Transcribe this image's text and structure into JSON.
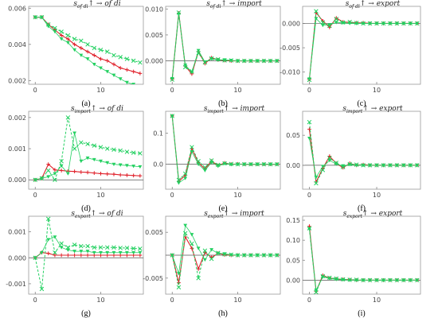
{
  "series_colors": {
    "line1": "#e0202a",
    "line2": "#22d060"
  },
  "chart_data": [
    {
      "type": "line",
      "label": "(a)",
      "title_main": "s",
      "title_sub": "of di",
      "title_tail": "↑ → of di",
      "xlim": [
        -1,
        16.5
      ],
      "ylim": [
        0.0018,
        0.0061
      ],
      "xticks": [
        "0",
        "10"
      ],
      "xtick_values": [
        0,
        10
      ],
      "yticks": [
        "0.002",
        "0.004",
        "0.006"
      ],
      "ytick_values": [
        0.002,
        0.004,
        0.006
      ],
      "x": [
        0,
        1,
        2,
        3,
        4,
        5,
        6,
        7,
        8,
        9,
        10,
        11,
        12,
        13,
        14,
        15,
        16
      ],
      "series": [
        {
          "values": [
            0.0055,
            0.0055,
            0.0051,
            0.0048,
            0.0045,
            0.0043,
            0.004,
            0.0038,
            0.0036,
            0.0034,
            0.0032,
            0.0031,
            0.0029,
            0.0027,
            0.0026,
            0.0025,
            0.0024
          ]
        },
        {
          "values": [
            0.0055,
            0.0055,
            0.0051,
            0.0049,
            0.0047,
            0.0045,
            0.0043,
            0.0042,
            0.004,
            0.0038,
            0.0037,
            0.0036,
            0.0034,
            0.0033,
            0.0032,
            0.0031,
            0.003
          ]
        },
        {
          "values": [
            0.0055,
            0.0055,
            0.005,
            0.0047,
            0.0043,
            0.0041,
            0.0037,
            0.0034,
            0.0032,
            0.0029,
            0.0027,
            0.0025,
            0.0023,
            0.0021,
            0.0019,
            0.0018,
            0.0016
          ]
        }
      ]
    },
    {
      "type": "line",
      "label": "(b)",
      "title_main": "s",
      "title_sub": "of di",
      "title_tail": "↑ → import",
      "xlim": [
        -1,
        16.5
      ],
      "ylim": [
        -0.0045,
        0.0105
      ],
      "xticks": [
        "0",
        "10"
      ],
      "xtick_values": [
        0,
        10
      ],
      "yticks": [
        "0.000",
        "0.005",
        "0.010"
      ],
      "ytick_values": [
        0,
        0.005,
        0.01
      ],
      "x": [
        0,
        1,
        2,
        3,
        4,
        5,
        6,
        7,
        8,
        9,
        10,
        11,
        12,
        13,
        14,
        15,
        16
      ],
      "series": [
        {
          "values": [
            -0.0035,
            0.0092,
            -0.001,
            -0.0025,
            0.0018,
            -0.0005,
            0.0006,
            0.0002,
            0.0001,
            0.0,
            0.0,
            0.0,
            0.0,
            0.0,
            0.0,
            0.0,
            0.0
          ]
        },
        {
          "values": [
            -0.0036,
            0.0093,
            -0.0012,
            -0.002,
            0.0015,
            -0.0003,
            0.0005,
            0.0003,
            0.0001,
            0.0001,
            0.0,
            0.0,
            0.0,
            0.0,
            0.0,
            0.0,
            0.0
          ]
        },
        {
          "values": [
            -0.0034,
            0.009,
            -0.0008,
            -0.0022,
            0.002,
            -0.0002,
            0.0004,
            0.0002,
            0.0002,
            0.0001,
            0.0,
            0.0,
            0.0,
            0.0,
            0.0,
            0.0,
            0.0
          ]
        }
      ]
    },
    {
      "type": "line",
      "label": "(c)",
      "title_main": "s",
      "title_sub": "of di",
      "title_tail": "↑ → export",
      "xlim": [
        -1,
        16.5
      ],
      "ylim": [
        -0.0125,
        0.0035
      ],
      "xticks": [
        "0",
        "10"
      ],
      "xtick_values": [
        0,
        10
      ],
      "yticks": [
        "0.000",
        "-0.005",
        "-0.010"
      ],
      "ytick_values": [
        0,
        -0.005,
        -0.01
      ],
      "x": [
        0,
        1,
        2,
        3,
        4,
        5,
        6,
        7,
        8,
        9,
        10,
        11,
        12,
        13,
        14,
        15,
        16
      ],
      "series": [
        {
          "values": [
            -0.0115,
            0.0022,
            0.0005,
            -0.0008,
            0.0011,
            0.0003,
            0.0002,
            0.0001,
            0.0001,
            0.0,
            0.0,
            0.0,
            0.0,
            0.0,
            0.0,
            0.0,
            0.0
          ]
        },
        {
          "values": [
            -0.0116,
            0.0025,
            0.0002,
            -0.0005,
            0.0009,
            0.0002,
            0.0003,
            0.0001,
            0.0,
            0.0,
            0.0,
            0.0,
            0.0,
            0.0,
            0.0,
            0.0,
            0.0
          ]
        },
        {
          "values": [
            -0.0114,
            0.001,
            -0.0004,
            -0.0003,
            0.0002,
            0.0001,
            0.0,
            0.0,
            0.0,
            0.0,
            0.0,
            0.0,
            0.0,
            0.0,
            0.0,
            0.0,
            0.0
          ]
        }
      ]
    },
    {
      "type": "line",
      "label": "(d)",
      "title_main": "s",
      "title_sub": "import",
      "title_tail": "↑ → of di",
      "xlim": [
        -1,
        16.5
      ],
      "ylim": [
        -0.0003,
        0.0022
      ],
      "xticks": [
        "0",
        "10"
      ],
      "xtick_values": [
        0,
        10
      ],
      "yticks": [
        "0.000",
        "0.001",
        "0.002"
      ],
      "ytick_values": [
        0,
        0.001,
        0.002
      ],
      "x": [
        0,
        1,
        2,
        3,
        4,
        5,
        6,
        7,
        8,
        9,
        10,
        11,
        12,
        13,
        14,
        15,
        16
      ],
      "series": [
        {
          "values": [
            0.0,
            5e-05,
            0.0005,
            0.00032,
            0.0003,
            0.00028,
            0.00027,
            0.00025,
            0.00024,
            0.00022,
            0.0002,
            0.00019,
            0.00018,
            0.00016,
            0.00015,
            0.00014,
            0.00013
          ]
        },
        {
          "values": [
            0.0,
            5e-05,
            0.0003,
            0.0,
            0.0006,
            0.002,
            0.001,
            0.0012,
            0.00115,
            0.0011,
            0.00105,
            0.001,
            0.00097,
            0.00094,
            0.0009,
            0.00087,
            0.00085
          ]
        },
        {
          "values": [
            0.0,
            5e-05,
            0.0001,
            0.0002,
            0.00045,
            0.0002,
            0.0015,
            0.0006,
            0.0007,
            0.00065,
            0.0006,
            0.00055,
            0.0005,
            0.00048,
            0.00046,
            0.00044,
            0.00042
          ]
        }
      ]
    },
    {
      "type": "line",
      "label": "(e)",
      "title_main": "s",
      "title_sub": "import",
      "title_tail": "↑ → import",
      "xlim": [
        -1,
        16.5
      ],
      "ylim": [
        -0.08,
        0.17
      ],
      "xticks": [
        "0",
        "10"
      ],
      "xtick_values": [
        0,
        10
      ],
      "yticks": [
        "0.1",
        "0.0"
      ],
      "ytick_values": [
        0.1,
        0.0
      ],
      "x": [
        0,
        1,
        2,
        3,
        4,
        5,
        6,
        7,
        8,
        9,
        10,
        11,
        12,
        13,
        14,
        15,
        16
      ],
      "series": [
        {
          "values": [
            0.155,
            -0.055,
            -0.035,
            0.05,
            0.005,
            -0.015,
            0.01,
            -0.004,
            0.004,
            0.0,
            0.001,
            0.0,
            0.0,
            0.0,
            0.0,
            0.0,
            0.0
          ]
        },
        {
          "values": [
            0.155,
            -0.05,
            -0.03,
            0.055,
            0.01,
            -0.01,
            0.012,
            -0.002,
            0.003,
            0.001,
            0.0,
            0.0,
            0.0,
            0.0,
            0.0,
            0.0,
            0.0
          ]
        },
        {
          "values": [
            0.155,
            -0.06,
            -0.045,
            0.04,
            0.0,
            -0.02,
            0.006,
            -0.006,
            0.002,
            -0.001,
            0.0,
            0.0,
            0.0,
            0.0,
            0.0,
            0.0,
            0.0
          ]
        }
      ]
    },
    {
      "type": "line",
      "label": "(f)",
      "title_main": "s",
      "title_sub": "import",
      "title_tail": "↑ → export",
      "xlim": [
        -1,
        16.5
      ],
      "ylim": [
        -0.04,
        0.09
      ],
      "xticks": [
        "0",
        "10"
      ],
      "xtick_values": [
        0,
        10
      ],
      "yticks": [
        "0.05",
        "0.00"
      ],
      "ytick_values": [
        0.05,
        0.0
      ],
      "x": [
        0,
        1,
        2,
        3,
        4,
        5,
        6,
        7,
        8,
        9,
        10,
        11,
        12,
        13,
        14,
        15,
        16
      ],
      "series": [
        {
          "values": [
            0.06,
            -0.028,
            -0.005,
            0.015,
            0.003,
            -0.004,
            0.003,
            0.0,
            0.001,
            0.0,
            0.0,
            0.0,
            0.0,
            0.0,
            0.0,
            0.0,
            0.0
          ]
        },
        {
          "values": [
            0.072,
            -0.03,
            -0.008,
            0.012,
            0.004,
            -0.003,
            0.002,
            0.001,
            0.0,
            0.0,
            0.0,
            0.0,
            0.0,
            0.0,
            0.0,
            0.0,
            0.0
          ]
        },
        {
          "values": [
            0.045,
            -0.02,
            -0.002,
            0.008,
            0.002,
            -0.001,
            0.001,
            0.0,
            0.0,
            0.0,
            0.0,
            0.0,
            0.0,
            0.0,
            0.0,
            0.0,
            0.0
          ]
        }
      ]
    },
    {
      "type": "line",
      "label": "(g)",
      "title_main": "s",
      "title_sub": "export",
      "title_tail": "↑ → of di",
      "xlim": [
        -1,
        16.5
      ],
      "ylim": [
        -0.0014,
        0.0016
      ],
      "xticks": [
        "0",
        "10"
      ],
      "xtick_values": [
        0,
        10
      ],
      "yticks": [
        "0.001",
        "0.000",
        "-0.001"
      ],
      "ytick_values": [
        0.001,
        0.0,
        -0.001
      ],
      "x": [
        0,
        1,
        2,
        3,
        4,
        5,
        6,
        7,
        8,
        9,
        10,
        11,
        12,
        13,
        14,
        15,
        16
      ],
      "series": [
        {
          "values": [
            0.0,
            0.0002,
            0.00017,
            0.0001,
            0.0001,
            0.0001,
            0.0001,
            0.0001,
            0.0001,
            0.0001,
            0.0001,
            0.0001,
            0.0001,
            0.0001,
            0.0001,
            0.0001,
            0.0001
          ]
        },
        {
          "values": [
            0.0,
            -0.0012,
            0.0015,
            0.0002,
            0.00055,
            0.0004,
            0.0005,
            0.00045,
            0.00045,
            0.0004,
            0.0004,
            0.0004,
            0.0004,
            0.00038,
            0.00038,
            0.00036,
            0.00035
          ]
        },
        {
          "values": [
            0.0,
            0.0002,
            0.0007,
            0.0008,
            0.0004,
            0.0003,
            0.00025,
            0.00025,
            0.00025,
            0.0002,
            0.0002,
            0.0002,
            0.0002,
            0.0002,
            0.0002,
            0.0002,
            0.0002
          ]
        }
      ]
    },
    {
      "type": "line",
      "label": "(h)",
      "title_main": "s",
      "title_sub": "export",
      "title_tail": "↑ → import",
      "xlim": [
        -1,
        16.5
      ],
      "ylim": [
        -0.0085,
        0.0085
      ],
      "xticks": [
        "0",
        "10"
      ],
      "xtick_values": [
        0,
        10
      ],
      "yticks": [
        "0.005",
        "-0.005"
      ],
      "ytick_values": [
        0.005,
        -0.005
      ],
      "x": [
        0,
        1,
        2,
        3,
        4,
        5,
        6,
        7,
        8,
        9,
        10,
        11,
        12,
        13,
        14,
        15,
        16
      ],
      "series": [
        {
          "values": [
            0.0,
            -0.006,
            0.004,
            0.0015,
            -0.003,
            0.0006,
            -0.0005,
            0.0004,
            0.0001,
            0.0,
            0.0,
            0.0,
            0.0,
            0.0,
            0.0,
            0.0,
            0.0
          ]
        },
        {
          "values": [
            0.0,
            -0.007,
            0.0048,
            0.0025,
            -0.005,
            0.001,
            -0.0008,
            0.0005,
            0.0002,
            0.0001,
            0.0,
            0.0,
            0.0,
            0.0,
            0.0,
            0.0,
            0.0
          ]
        },
        {
          "values": [
            0.0,
            -0.004,
            0.0065,
            0.0045,
            0.0015,
            -0.001,
            0.0012,
            0.0004,
            0.0003,
            0.0001,
            0.0,
            0.0,
            0.0,
            0.0,
            0.0,
            0.0,
            0.0
          ]
        }
      ]
    },
    {
      "type": "line",
      "label": "(i)",
      "title_main": "s",
      "title_sub": "export",
      "title_tail": "↑ → export",
      "xlim": [
        -1,
        16.5
      ],
      "ylim": [
        -0.035,
        0.16
      ],
      "xticks": [
        "0",
        "10"
      ],
      "xtick_values": [
        0,
        10
      ],
      "yticks": [
        "0.15",
        "0.10",
        "0.05",
        "0.00"
      ],
      "ytick_values": [
        0.15,
        0.1,
        0.05,
        0.0
      ],
      "x": [
        0,
        1,
        2,
        3,
        4,
        5,
        6,
        7,
        8,
        9,
        10,
        11,
        12,
        13,
        14,
        15,
        16
      ],
      "series": [
        {
          "values": [
            0.135,
            -0.028,
            0.012,
            0.005,
            0.003,
            0.002,
            0.001,
            0.0,
            0.0,
            0.0,
            0.0,
            0.0,
            0.0,
            0.0,
            0.0,
            0.0,
            0.0
          ]
        },
        {
          "values": [
            0.13,
            -0.03,
            0.01,
            0.006,
            0.004,
            0.002,
            0.001,
            0.001,
            0.0,
            0.0,
            0.0,
            0.0,
            0.0,
            0.0,
            0.0,
            0.0,
            0.0
          ]
        },
        {
          "values": [
            0.128,
            -0.025,
            0.008,
            0.004,
            0.002,
            0.001,
            0.0,
            0.0,
            0.0,
            0.0,
            0.0,
            0.0,
            0.0,
            0.0,
            0.0,
            0.0,
            0.0
          ]
        }
      ]
    }
  ]
}
